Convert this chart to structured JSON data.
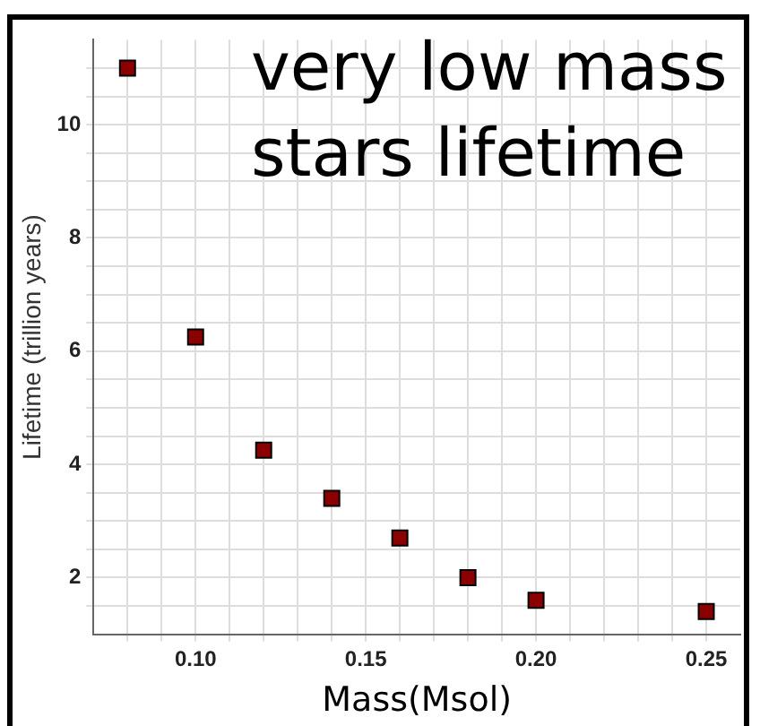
{
  "chart_data": {
    "type": "scatter",
    "xlabel": "Mass(Msol)",
    "ylabel": "Lifetime (trillion years)",
    "x": [
      0.08,
      0.1,
      0.12,
      0.14,
      0.16,
      0.18,
      0.2,
      0.25
    ],
    "series": [
      {
        "color": "#8b0000",
        "values": [
          11,
          6.25,
          4.25,
          3.4,
          2.7,
          2.0,
          1.6,
          1.4
        ]
      }
    ],
    "xlim": [
      0.07,
      0.26
    ],
    "ylim": [
      1,
      11.5
    ],
    "xticks": [
      {
        "value": 0.08,
        "label": null
      },
      {
        "value": 0.09,
        "label": null
      },
      {
        "value": 0.1,
        "label": "0.10"
      },
      {
        "value": 0.11,
        "label": null
      },
      {
        "value": 0.12,
        "label": null
      },
      {
        "value": 0.13,
        "label": null
      },
      {
        "value": 0.14,
        "label": null
      },
      {
        "value": 0.15,
        "label": "0.15"
      },
      {
        "value": 0.16,
        "label": null
      },
      {
        "value": 0.17,
        "label": null
      },
      {
        "value": 0.18,
        "label": null
      },
      {
        "value": 0.19,
        "label": null
      },
      {
        "value": 0.2,
        "label": "0.20"
      },
      {
        "value": 0.21,
        "label": null
      },
      {
        "value": 0.22,
        "label": null
      },
      {
        "value": 0.23,
        "label": null
      },
      {
        "value": 0.24,
        "label": null
      },
      {
        "value": 0.25,
        "label": "0.25"
      }
    ],
    "yticks": [
      {
        "value": 1.5,
        "label": null
      },
      2,
      {
        "value": 2.5,
        "label": null
      },
      {
        "value": 3,
        "label": null
      },
      {
        "value": 3.5,
        "label": null
      },
      4,
      {
        "value": 4.5,
        "label": null
      },
      {
        "value": 5,
        "label": null
      },
      {
        "value": 5.5,
        "label": null
      },
      6,
      {
        "value": 6.5,
        "label": null
      },
      {
        "value": 7,
        "label": null
      },
      {
        "value": 7.5,
        "label": null
      },
      8,
      {
        "value": 8.5,
        "label": null
      },
      {
        "value": 9,
        "label": null
      },
      {
        "value": 9.5,
        "label": null
      },
      10,
      {
        "value": 10.5,
        "label": null
      },
      {
        "value": 11,
        "label": null
      }
    ],
    "grid": true,
    "legend": false,
    "marker": "square",
    "annotations": [
      "very low mass stars lifetime"
    ]
  }
}
